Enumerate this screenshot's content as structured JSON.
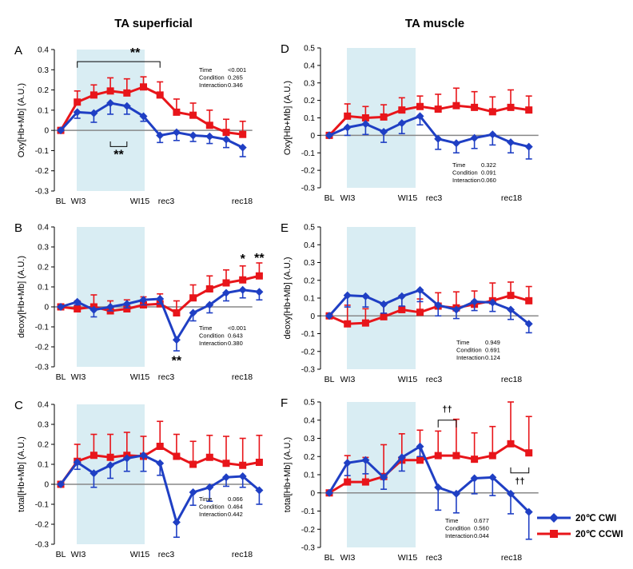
{
  "colors": {
    "series1": "#1f3fc4",
    "series2": "#e8151a",
    "shade": "#d9edf3"
  },
  "legend": [
    {
      "name": "20℃ CWI",
      "color": "#1f3fc4",
      "marker": "diamond"
    },
    {
      "name": "20℃ CCWI",
      "color": "#e8151a",
      "marker": "square"
    }
  ],
  "column_titles": [
    "TA superficial",
    "TA muscle"
  ],
  "chart_data": [
    {
      "id": "A",
      "type": "line",
      "letter": "A",
      "column": 0,
      "row": 0,
      "ylabel": "Oxy[Hb+Mb] (A.U.)",
      "ylim": [
        -0.3,
        0.4
      ],
      "yticks": [
        -0.3,
        -0.2,
        -0.1,
        0,
        0.1,
        0.2,
        0.3,
        0.4
      ],
      "x_tick_labels": [
        "BL",
        "WI3",
        "WI15",
        "rec3",
        "rec18"
      ],
      "series": [
        {
          "name": "20℃ CWI",
          "values": [
            0,
            0.09,
            0.085,
            0.135,
            0.12,
            0.07,
            -0.025,
            -0.01,
            -0.025,
            -0.03,
            -0.045,
            -0.085
          ],
          "errors": [
            0,
            0.03,
            0.045,
            0.055,
            0.04,
            0.025,
            0.035,
            0.04,
            0.03,
            0.035,
            0.04,
            0.045
          ]
        },
        {
          "name": "20℃ CCWI",
          "values": [
            0,
            0.14,
            0.175,
            0.195,
            0.185,
            0.215,
            0.175,
            0.09,
            0.075,
            0.025,
            -0.01,
            -0.02
          ],
          "errors": [
            0,
            0.055,
            0.05,
            0.065,
            0.07,
            0.05,
            0.065,
            0.065,
            0.06,
            0.075,
            0.065,
            0.065
          ]
        }
      ],
      "stats": [
        {
          "label": "Time",
          "value": "<0.001"
        },
        {
          "label": "Condition",
          "value": "0.265"
        },
        {
          "label": "Interaction",
          "value": "0.346"
        }
      ],
      "annotations": [
        {
          "text": "**",
          "x": 4.5,
          "y": 0.365,
          "size": 16
        },
        {
          "text": "**",
          "x": 3.5,
          "y": -0.14,
          "size": 16
        }
      ],
      "brackets": [
        {
          "x1": 1,
          "x2": 6,
          "y": 0.34,
          "dir": "down",
          "tick": 0.03
        },
        {
          "x1": 3,
          "x2": 4,
          "y": -0.08,
          "dir": "up",
          "tick": 0.025
        }
      ]
    },
    {
      "id": "B",
      "type": "line",
      "letter": "B",
      "column": 0,
      "row": 1,
      "ylabel": "deoxy[Hb+Mb] (A.U.)",
      "ylim": [
        -0.3,
        0.4
      ],
      "yticks": [
        -0.3,
        -0.2,
        -0.1,
        0,
        0.1,
        0.2,
        0.3,
        0.4
      ],
      "x_tick_labels": [
        "BL",
        "WI3",
        "WI15",
        "rec3",
        "rec18"
      ],
      "series": [
        {
          "name": "20℃ CWI",
          "values": [
            0,
            0.025,
            -0.015,
            0,
            0.015,
            0.035,
            0.04,
            -0.165,
            -0.03,
            0.01,
            0.07,
            0.085,
            0.075
          ],
          "errors": [
            0,
            0.015,
            0.035,
            0.02,
            0.02,
            0.025,
            0.025,
            0.055,
            0.04,
            0.04,
            0.04,
            0.04,
            0.04
          ]
        },
        {
          "name": "20℃ CCWI",
          "values": [
            0,
            -0.01,
            0,
            -0.02,
            -0.01,
            0.01,
            0.015,
            -0.03,
            0.045,
            0.09,
            0.12,
            0.135,
            0.155
          ],
          "errors": [
            0,
            0.04,
            0.06,
            0.05,
            0.045,
            0.04,
            0.05,
            0.06,
            0.065,
            0.065,
            0.065,
            0.07,
            0.065
          ]
        }
      ],
      "stats": [
        {
          "label": "Time",
          "value": "<0.001"
        },
        {
          "label": "Condition",
          "value": "0.643"
        },
        {
          "label": "Interaction",
          "value": "0.380"
        }
      ],
      "annotations": [
        {
          "text": "*",
          "x": 11,
          "y": 0.22,
          "size": 16
        },
        {
          "text": "**",
          "x": 12,
          "y": 0.225,
          "size": 16
        },
        {
          "text": "**",
          "x": 7,
          "y": -0.29,
          "size": 16
        }
      ],
      "brackets": []
    },
    {
      "id": "C",
      "type": "line",
      "letter": "C",
      "column": 0,
      "row": 2,
      "ylabel": "total[Hb+Mb] (A.U.)",
      "ylim": [
        -0.3,
        0.4
      ],
      "yticks": [
        -0.3,
        -0.2,
        -0.1,
        0,
        0.1,
        0.2,
        0.3,
        0.4
      ],
      "x_tick_labels": [
        "BL",
        "WI3",
        "WI15",
        "rec3",
        "rec18"
      ],
      "series": [
        {
          "name": "20℃ CWI",
          "values": [
            0,
            0.11,
            0.055,
            0.095,
            0.13,
            0.145,
            0.105,
            -0.19,
            -0.04,
            -0.015,
            0.035,
            0.04,
            -0.03
          ],
          "errors": [
            0,
            0.035,
            0.07,
            0.065,
            0.065,
            0.08,
            0.06,
            0.075,
            0.065,
            0.07,
            0.045,
            0.055,
            0.07
          ]
        },
        {
          "name": "20℃ CCWI",
          "values": [
            0,
            0.115,
            0.145,
            0.135,
            0.145,
            0.14,
            0.19,
            0.14,
            0.1,
            0.135,
            0.105,
            0.095,
            0.11
          ],
          "errors": [
            0,
            0.085,
            0.105,
            0.115,
            0.115,
            0.1,
            0.125,
            0.11,
            0.115,
            0.11,
            0.135,
            0.135,
            0.135
          ]
        }
      ],
      "stats": [
        {
          "label": "Time",
          "value": "0.066"
        },
        {
          "label": "Condition",
          "value": "0.464"
        },
        {
          "label": "Interaction",
          "value": "0.442"
        }
      ],
      "annotations": [],
      "brackets": []
    },
    {
      "id": "D",
      "type": "line",
      "letter": "D",
      "column": 1,
      "row": 0,
      "ylabel": "Oxy[Hb+Mb] (A.U.)",
      "ylim": [
        -0.3,
        0.5
      ],
      "yticks": [
        -0.3,
        -0.2,
        -0.1,
        0,
        0.1,
        0.2,
        0.3,
        0.4,
        0.5
      ],
      "x_tick_labels": [
        "BL",
        "WI3",
        "WI15",
        "rec3",
        "rec18"
      ],
      "series": [
        {
          "name": "20℃ CWI",
          "values": [
            0,
            0.045,
            0.065,
            0.02,
            0.07,
            0.11,
            -0.02,
            -0.045,
            -0.015,
            0.005,
            -0.04,
            -0.065
          ],
          "errors": [
            0,
            0.045,
            0.06,
            0.06,
            0.06,
            0.05,
            0.06,
            0.055,
            0.06,
            0.06,
            0.06,
            0.07
          ]
        },
        {
          "name": "20℃ CCWI",
          "values": [
            0,
            0.11,
            0.1,
            0.105,
            0.145,
            0.165,
            0.15,
            0.17,
            0.16,
            0.135,
            0.16,
            0.145
          ],
          "errors": [
            0,
            0.07,
            0.065,
            0.07,
            0.07,
            0.06,
            0.085,
            0.1,
            0.09,
            0.085,
            0.1,
            0.08
          ]
        }
      ],
      "stats": [
        {
          "label": "Time",
          "value": "0.322"
        },
        {
          "label": "Condition",
          "value": "0.091"
        },
        {
          "label": "Interaction",
          "value": "0.060"
        }
      ],
      "annotations": [],
      "brackets": []
    },
    {
      "id": "E",
      "type": "line",
      "letter": "E",
      "column": 1,
      "row": 1,
      "ylabel": "deoxy[Hb+Mb] (A.U.)",
      "ylim": [
        -0.3,
        0.5
      ],
      "yticks": [
        -0.3,
        -0.2,
        -0.1,
        0,
        0.1,
        0.2,
        0.3,
        0.4,
        0.5
      ],
      "x_tick_labels": [
        "BL",
        "WI3",
        "WI15",
        "rec3",
        "rec18"
      ],
      "series": [
        {
          "name": "20℃ CWI",
          "values": [
            0,
            0.115,
            0.11,
            0.065,
            0.11,
            0.145,
            0.06,
            0.035,
            0.08,
            0.075,
            0.035,
            -0.045
          ],
          "errors": [
            0,
            0.065,
            0.06,
            0.05,
            0.055,
            0.065,
            0.06,
            0.05,
            0.05,
            0.05,
            0.055,
            0.05
          ]
        },
        {
          "name": "20℃ CCWI",
          "values": [
            0,
            -0.045,
            -0.04,
            -0.005,
            0.035,
            0.02,
            0.055,
            0.045,
            0.065,
            0.085,
            0.115,
            0.085
          ],
          "errors": [
            0,
            0.105,
            0.08,
            0.075,
            0.08,
            0.075,
            0.075,
            0.09,
            0.075,
            0.1,
            0.075,
            0.08
          ]
        }
      ],
      "stats": [
        {
          "label": "Time",
          "value": "0.949"
        },
        {
          "label": "Condition",
          "value": "0.691"
        },
        {
          "label": "Interaction",
          "value": "0.124"
        }
      ],
      "annotations": [],
      "brackets": []
    },
    {
      "id": "F",
      "type": "line",
      "letter": "F",
      "column": 1,
      "row": 2,
      "ylabel": "total[Hb+Mb] (A.U.)",
      "ylim": [
        -0.3,
        0.5
      ],
      "yticks": [
        -0.3,
        -0.2,
        -0.1,
        0,
        0.1,
        0.2,
        0.3,
        0.4,
        0.5
      ],
      "x_tick_labels": [
        "BL",
        "WI3",
        "WI15",
        "rec3",
        "rec18"
      ],
      "series": [
        {
          "name": "20℃ CWI",
          "values": [
            0,
            0.165,
            0.18,
            0.085,
            0.195,
            0.255,
            0.03,
            -0.005,
            0.08,
            0.085,
            -0.005,
            -0.105
          ],
          "errors": [
            0,
            0.07,
            0.075,
            0.065,
            0.075,
            0.055,
            0.125,
            0.105,
            0.085,
            0.1,
            0.11,
            0.15
          ]
        },
        {
          "name": "20℃ CCWI",
          "values": [
            0,
            0.06,
            0.06,
            0.09,
            0.18,
            0.18,
            0.205,
            0.205,
            0.185,
            0.205,
            0.27,
            0.22
          ],
          "errors": [
            0,
            0.145,
            0.135,
            0.175,
            0.145,
            0.165,
            0.135,
            0.2,
            0.145,
            0.16,
            0.23,
            0.2
          ]
        }
      ],
      "stats": [
        {
          "label": "Time",
          "value": "0.677"
        },
        {
          "label": "Condition",
          "value": "0.560"
        },
        {
          "label": "Interaction",
          "value": "0.044"
        }
      ],
      "annotations": [
        {
          "text": "††",
          "x": 6.5,
          "y": 0.445,
          "size": 11
        },
        {
          "text": "††",
          "x": 10.5,
          "y": 0.05,
          "size": 11
        }
      ],
      "brackets": [
        {
          "x1": 6,
          "x2": 7,
          "y": 0.4,
          "dir": "down",
          "tick": 0.04
        },
        {
          "x1": 10,
          "x2": 11,
          "y": 0.11,
          "dir": "up",
          "tick": 0.03
        }
      ]
    }
  ]
}
